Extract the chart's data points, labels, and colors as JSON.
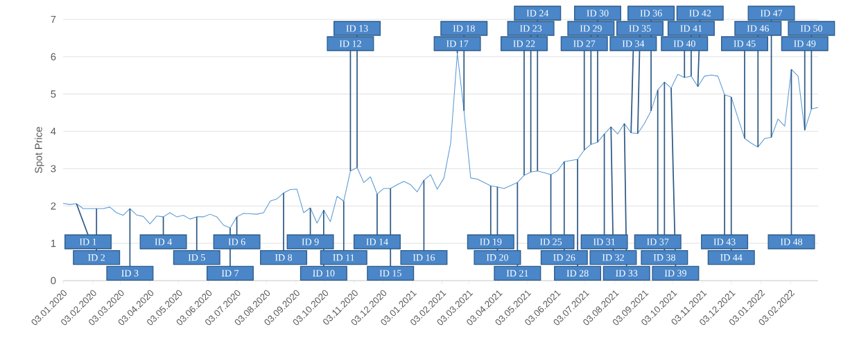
{
  "chart_data": {
    "type": "line",
    "ylabel": "Spot Price",
    "color": "#5b9bd5",
    "grid": "y",
    "xlim": [
      "2020-01-03",
      "2022-03-04"
    ],
    "ylim": [
      0,
      7
    ],
    "yticks": [
      0,
      1,
      2,
      3,
      4,
      5,
      6,
      7
    ],
    "xticks": [
      {
        "value": "2020-01-03",
        "label": "03.01.2020"
      },
      {
        "value": "2020-02-03",
        "label": "03.02.2020"
      },
      {
        "value": "2020-03-03",
        "label": "03.03.2020"
      },
      {
        "value": "2020-04-03",
        "label": "03.04.2020"
      },
      {
        "value": "2020-05-03",
        "label": "03.05.2020"
      },
      {
        "value": "2020-06-03",
        "label": "03.06.2020"
      },
      {
        "value": "2020-07-03",
        "label": "03.07.2020"
      },
      {
        "value": "2020-08-03",
        "label": "03.08.2020"
      },
      {
        "value": "2020-09-03",
        "label": "03.09.2020"
      },
      {
        "value": "2020-10-03",
        "label": "03.10.2020"
      },
      {
        "value": "2020-11-03",
        "label": "03.11.2020"
      },
      {
        "value": "2020-12-03",
        "label": "03.12.2020"
      },
      {
        "value": "2021-01-03",
        "label": "03.01.2021"
      },
      {
        "value": "2021-02-03",
        "label": "03.02.2021"
      },
      {
        "value": "2021-03-03",
        "label": "03.03.2021"
      },
      {
        "value": "2021-04-03",
        "label": "03.04.2021"
      },
      {
        "value": "2021-05-03",
        "label": "03.05.2021"
      },
      {
        "value": "2021-06-03",
        "label": "03.06.2021"
      },
      {
        "value": "2021-07-03",
        "label": "03.07.2021"
      },
      {
        "value": "2021-08-03",
        "label": "03.08.2021"
      },
      {
        "value": "2021-09-03",
        "label": "03.09.2021"
      },
      {
        "value": "2021-10-03",
        "label": "03.10.2021"
      },
      {
        "value": "2021-11-03",
        "label": "03.11.2021"
      },
      {
        "value": "2021-12-03",
        "label": "03.12.2021"
      },
      {
        "value": "2022-01-03",
        "label": "03.01.2022"
      },
      {
        "value": "2022-02-03",
        "label": "03.02.2022"
      }
    ],
    "x": [
      "2020-01-03",
      "2020-01-10",
      "2020-01-17",
      "2020-01-24",
      "2020-01-31",
      "2020-02-07",
      "2020-02-14",
      "2020-02-21",
      "2020-02-28",
      "2020-03-06",
      "2020-03-13",
      "2020-03-20",
      "2020-03-27",
      "2020-04-03",
      "2020-04-10",
      "2020-04-17",
      "2020-04-24",
      "2020-05-01",
      "2020-05-08",
      "2020-05-15",
      "2020-05-22",
      "2020-05-29",
      "2020-06-05",
      "2020-06-12",
      "2020-06-19",
      "2020-06-26",
      "2020-07-03",
      "2020-07-10",
      "2020-07-17",
      "2020-07-24",
      "2020-07-31",
      "2020-08-07",
      "2020-08-14",
      "2020-08-21",
      "2020-08-28",
      "2020-09-04",
      "2020-09-11",
      "2020-09-18",
      "2020-09-25",
      "2020-10-02",
      "2020-10-09",
      "2020-10-16",
      "2020-10-23",
      "2020-10-30",
      "2020-11-06",
      "2020-11-13",
      "2020-11-20",
      "2020-11-27",
      "2020-12-04",
      "2020-12-11",
      "2020-12-18",
      "2020-12-25",
      "2021-01-01",
      "2021-01-08",
      "2021-01-15",
      "2021-01-22",
      "2021-01-29",
      "2021-02-05",
      "2021-02-12",
      "2021-02-19",
      "2021-02-26",
      "2021-03-05",
      "2021-03-12",
      "2021-03-19",
      "2021-03-26",
      "2021-04-02",
      "2021-04-09",
      "2021-04-16",
      "2021-04-23",
      "2021-04-30",
      "2021-05-07",
      "2021-05-14",
      "2021-05-21",
      "2021-05-28",
      "2021-06-04",
      "2021-06-11",
      "2021-06-18",
      "2021-06-25",
      "2021-07-02",
      "2021-07-09",
      "2021-07-16",
      "2021-07-23",
      "2021-07-30",
      "2021-08-06",
      "2021-08-13",
      "2021-08-20",
      "2021-08-27",
      "2021-09-03",
      "2021-09-10",
      "2021-09-17",
      "2021-09-24",
      "2021-10-01",
      "2021-10-08",
      "2021-10-15",
      "2021-10-22",
      "2021-10-29",
      "2021-11-05",
      "2021-11-12",
      "2021-11-19",
      "2021-11-26",
      "2021-12-03",
      "2021-12-10",
      "2021-12-17",
      "2021-12-24",
      "2021-12-31",
      "2022-01-07",
      "2022-01-14",
      "2022-01-21",
      "2022-01-28",
      "2022-02-04",
      "2022-02-11",
      "2022-02-18",
      "2022-02-25",
      "2022-03-04"
    ],
    "values": [
      2.07,
      2.04,
      2.06,
      1.93,
      1.93,
      1.93,
      1.93,
      1.97,
      1.82,
      1.75,
      1.93,
      1.76,
      1.72,
      1.52,
      1.73,
      1.71,
      1.82,
      1.71,
      1.75,
      1.65,
      1.71,
      1.71,
      1.78,
      1.71,
      1.49,
      1.41,
      1.71,
      1.8,
      1.79,
      1.78,
      1.82,
      2.13,
      2.19,
      2.35,
      2.44,
      2.45,
      1.82,
      1.95,
      1.54,
      1.89,
      1.58,
      2.26,
      2.13,
      2.94,
      3.03,
      2.63,
      2.78,
      2.32,
      2.47,
      2.47,
      2.57,
      2.66,
      2.57,
      2.38,
      2.69,
      2.84,
      2.45,
      2.75,
      3.68,
      6.09,
      4.55,
      2.75,
      2.72,
      2.63,
      2.54,
      2.51,
      2.47,
      2.55,
      2.63,
      2.82,
      2.91,
      2.94,
      2.89,
      2.84,
      2.94,
      3.19,
      3.22,
      3.25,
      3.5,
      3.65,
      3.71,
      3.93,
      4.12,
      3.93,
      4.21,
      3.96,
      3.94,
      4.21,
      4.55,
      5.11,
      5.32,
      5.16,
      5.53,
      5.44,
      5.48,
      5.2,
      5.48,
      5.51,
      5.48,
      4.98,
      4.92,
      4.36,
      3.81,
      3.68,
      3.58,
      3.81,
      3.84,
      4.33,
      4.14,
      5.66,
      5.48,
      4.03,
      4.6,
      4.64
    ],
    "annotations": [
      {
        "text": "ID 1",
        "x": "2020-01-17",
        "y": 2.06
      },
      {
        "text": "ID 2",
        "x": "2020-02-07",
        "y": 1.93
      },
      {
        "text": "ID 3",
        "x": "2020-03-13",
        "y": 1.93
      },
      {
        "text": "ID 4",
        "x": "2020-04-17",
        "y": 1.71
      },
      {
        "text": "ID 5",
        "x": "2020-05-22",
        "y": 1.71
      },
      {
        "text": "ID 6",
        "x": "2020-07-03",
        "y": 1.71
      },
      {
        "text": "ID 7",
        "x": "2020-06-26",
        "y": 1.41
      },
      {
        "text": "ID 8",
        "x": "2020-08-21",
        "y": 2.35
      },
      {
        "text": "ID 9",
        "x": "2020-09-18",
        "y": 1.95
      },
      {
        "text": "ID 10",
        "x": "2020-10-02",
        "y": 1.89
      },
      {
        "text": "ID 11",
        "x": "2020-10-23",
        "y": 2.13
      },
      {
        "text": "ID 12",
        "x": "2020-10-30",
        "y": 2.94
      },
      {
        "text": "ID 13",
        "x": "2020-11-06",
        "y": 3.03
      },
      {
        "text": "ID 14",
        "x": "2020-11-27",
        "y": 2.32
      },
      {
        "text": "ID 15",
        "x": "2020-12-11",
        "y": 2.47
      },
      {
        "text": "ID 16",
        "x": "2021-01-15",
        "y": 2.69
      },
      {
        "text": "ID 17",
        "x": "2021-02-19",
        "y": 6.09
      },
      {
        "text": "ID 18",
        "x": "2021-02-26",
        "y": 4.55
      },
      {
        "text": "ID 19",
        "x": "2021-03-26",
        "y": 2.54
      },
      {
        "text": "ID 20",
        "x": "2021-04-02",
        "y": 2.51
      },
      {
        "text": "ID 21",
        "x": "2021-04-23",
        "y": 2.63
      },
      {
        "text": "ID 22",
        "x": "2021-04-30",
        "y": 2.82
      },
      {
        "text": "ID 23",
        "x": "2021-05-07",
        "y": 2.91
      },
      {
        "text": "ID 24",
        "x": "2021-05-14",
        "y": 2.94
      },
      {
        "text": "ID 25",
        "x": "2021-05-28",
        "y": 2.84
      },
      {
        "text": "ID 26",
        "x": "2021-06-11",
        "y": 3.19
      },
      {
        "text": "ID 27",
        "x": "2021-07-02",
        "y": 3.5
      },
      {
        "text": "ID 28",
        "x": "2021-06-25",
        "y": 3.25
      },
      {
        "text": "ID 29",
        "x": "2021-07-09",
        "y": 3.65
      },
      {
        "text": "ID 30",
        "x": "2021-07-16",
        "y": 3.71
      },
      {
        "text": "ID 31",
        "x": "2021-07-23",
        "y": 3.93
      },
      {
        "text": "ID 32",
        "x": "2021-07-30",
        "y": 4.12
      },
      {
        "text": "ID 33",
        "x": "2021-08-13",
        "y": 4.21
      },
      {
        "text": "ID 34",
        "x": "2021-08-20",
        "y": 3.96
      },
      {
        "text": "ID 35",
        "x": "2021-08-27",
        "y": 3.94
      },
      {
        "text": "ID 36",
        "x": "2021-09-10",
        "y": 4.55
      },
      {
        "text": "ID 37",
        "x": "2021-09-17",
        "y": 5.11
      },
      {
        "text": "ID 38",
        "x": "2021-09-24",
        "y": 5.32
      },
      {
        "text": "ID 39",
        "x": "2021-10-01",
        "y": 5.16
      },
      {
        "text": "ID 40",
        "x": "2021-10-15",
        "y": 5.44
      },
      {
        "text": "ID 41",
        "x": "2021-10-22",
        "y": 5.48
      },
      {
        "text": "ID 42",
        "x": "2021-10-29",
        "y": 5.2
      },
      {
        "text": "ID 43",
        "x": "2021-11-26",
        "y": 4.98
      },
      {
        "text": "ID 44",
        "x": "2021-12-03",
        "y": 4.92
      },
      {
        "text": "ID 45",
        "x": "2021-12-17",
        "y": 3.81
      },
      {
        "text": "ID 46",
        "x": "2021-12-31",
        "y": 3.58
      },
      {
        "text": "ID 47",
        "x": "2022-01-14",
        "y": 3.84
      },
      {
        "text": "ID 48",
        "x": "2022-02-04",
        "y": 5.66
      },
      {
        "text": "ID 49",
        "x": "2022-02-18",
        "y": 4.03
      },
      {
        "text": "ID 50",
        "x": "2022-02-25",
        "y": 4.6
      }
    ]
  }
}
